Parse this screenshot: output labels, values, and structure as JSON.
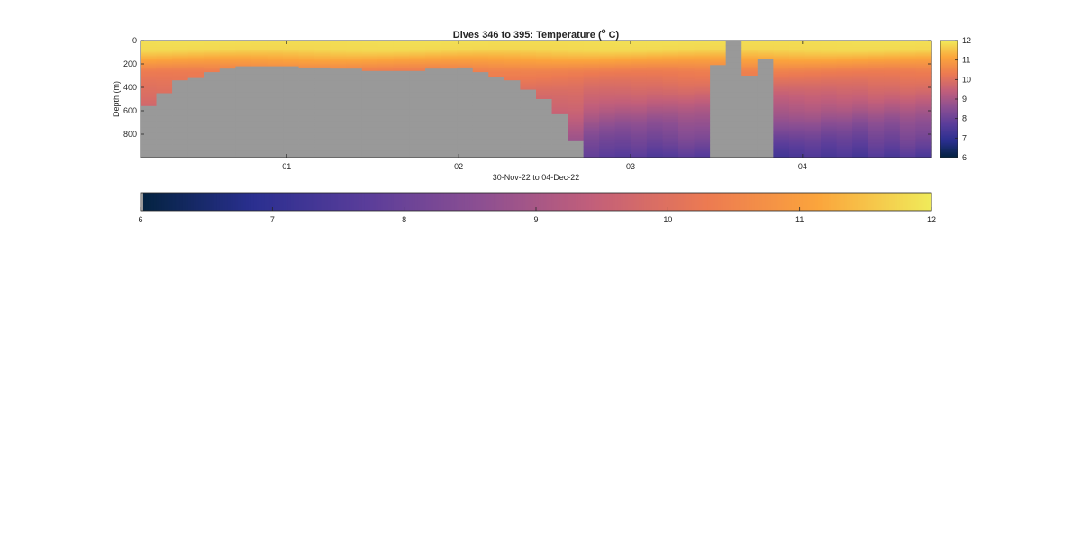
{
  "chart_data": {
    "type": "heatmap",
    "title_prefix": "Dives 346 to 395: Temperature (",
    "title_sup": "o",
    "title_suffix": " C)",
    "xlabel": "30-Nov-22 to 04-Dec-22",
    "ylabel": "Depth (m)",
    "x_range_days": [
      30.15,
      34.75
    ],
    "x_ticks": [
      {
        "value": 31,
        "label": "01"
      },
      {
        "value": 32,
        "label": "02"
      },
      {
        "value": 33,
        "label": "03"
      },
      {
        "value": 34,
        "label": "04"
      }
    ],
    "y_range_m": [
      0,
      1000
    ],
    "y_reversed": true,
    "y_ticks": [
      {
        "value": 0,
        "label": "0"
      },
      {
        "value": 200,
        "label": "200"
      },
      {
        "value": 400,
        "label": "400"
      },
      {
        "value": 600,
        "label": "600"
      },
      {
        "value": 800,
        "label": "800"
      }
    ],
    "color_range_c": [
      6,
      12
    ],
    "colormap": "thermal",
    "colormap_stops": [
      "#03233f",
      "#2a2f90",
      "#5a3d9a",
      "#8c4f92",
      "#c25f7a",
      "#ec7a52",
      "#fba53c",
      "#f0eb5a"
    ],
    "mask_color": "#999999",
    "dive_bottoms_m": [
      560,
      450,
      340,
      320,
      270,
      240,
      220,
      215,
      215,
      220,
      225,
      230,
      235,
      235,
      255,
      260,
      260,
      255,
      235,
      240,
      230,
      270,
      305,
      340,
      420,
      500,
      630,
      860,
      1000,
      1000,
      1000,
      1000,
      1000,
      1000,
      1000,
      1000,
      210,
      0,
      300,
      160,
      1000,
      1000,
      1000,
      1000,
      1000,
      1000,
      1000,
      1000,
      1000,
      1000
    ],
    "min_temperature_c": [
      8.5,
      8.5,
      8.5,
      8.5,
      8.5,
      8.5,
      8.5,
      8.5,
      8.5,
      8.5,
      8.5,
      8.5,
      8.5,
      8.5,
      8.5,
      8.5,
      8.5,
      8.5,
      8.5,
      8.5,
      8.5,
      8.5,
      8.5,
      8.5,
      8.5,
      8.5,
      8.5,
      8.5,
      7.8,
      7.6,
      7.5,
      7.6,
      7.4,
      7.5,
      7.7,
      7.6,
      8.5,
      8.5,
      8.5,
      8.5,
      7.3,
      7.4,
      7.5,
      7.3,
      7.4,
      7.2,
      7.5,
      7.3,
      7.6,
      7.4
    ],
    "vertical_colorbar": {
      "ticks": [
        {
          "value": 6,
          "label": "6"
        },
        {
          "value": 7,
          "label": "7"
        },
        {
          "value": 8,
          "label": "8"
        },
        {
          "value": 9,
          "label": "9"
        },
        {
          "value": 10,
          "label": "10"
        },
        {
          "value": 11,
          "label": "11"
        },
        {
          "value": 12,
          "label": "12"
        }
      ]
    },
    "horizontal_colorbar": {
      "ticks": [
        {
          "value": 6,
          "label": "6"
        },
        {
          "value": 7,
          "label": "7"
        },
        {
          "value": 8,
          "label": "8"
        },
        {
          "value": 9,
          "label": "9"
        },
        {
          "value": 10,
          "label": "10"
        },
        {
          "value": 11,
          "label": "11"
        },
        {
          "value": 12,
          "label": "12"
        }
      ]
    }
  }
}
